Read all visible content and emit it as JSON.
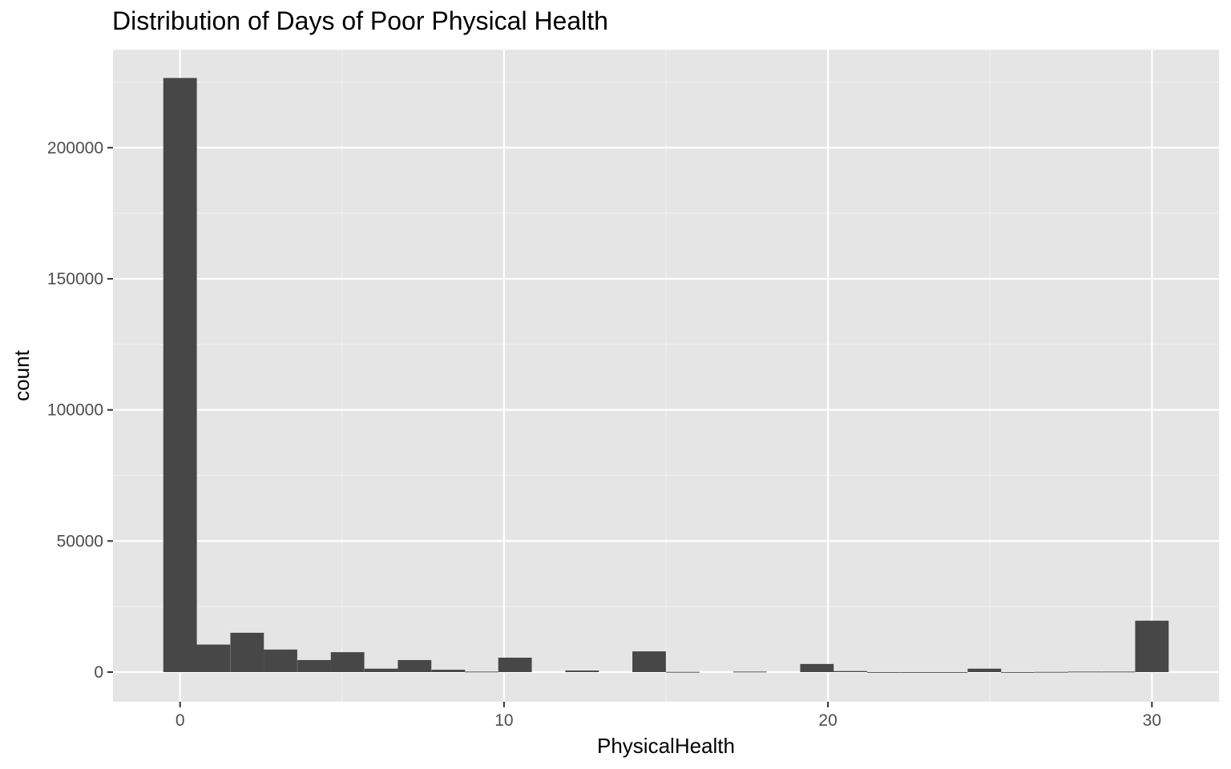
{
  "chart_data": {
    "type": "bar",
    "title": "Distribution of Days of Poor Physical Health",
    "xlabel": "PhysicalHealth",
    "ylabel": "count",
    "xlim": [
      -2.07,
      32.07
    ],
    "ylim": [
      -11300,
      237400
    ],
    "x_ticks": [
      0,
      10,
      20,
      30
    ],
    "x_tick_labels": [
      "0",
      "10",
      "20",
      "30"
    ],
    "y_ticks": [
      0,
      50000,
      100000,
      150000,
      200000
    ],
    "y_tick_labels": [
      "0",
      "50000",
      "100000",
      "150000",
      "200000"
    ],
    "bin_width": 1.0345,
    "bins": [
      {
        "x": 0.0,
        "count": 226600
      },
      {
        "x": 1.03,
        "count": 10500
      },
      {
        "x": 2.07,
        "count": 15000
      },
      {
        "x": 3.1,
        "count": 8600
      },
      {
        "x": 4.14,
        "count": 4600
      },
      {
        "x": 5.17,
        "count": 7600
      },
      {
        "x": 6.21,
        "count": 1300
      },
      {
        "x": 7.24,
        "count": 4600
      },
      {
        "x": 8.28,
        "count": 900
      },
      {
        "x": 9.31,
        "count": 200
      },
      {
        "x": 10.34,
        "count": 5500
      },
      {
        "x": 11.38,
        "count": 0
      },
      {
        "x": 12.41,
        "count": 600
      },
      {
        "x": 13.45,
        "count": 0
      },
      {
        "x": 14.48,
        "count": 7900
      },
      {
        "x": 15.52,
        "count": 100
      },
      {
        "x": 16.55,
        "count": 0
      },
      {
        "x": 17.59,
        "count": 200
      },
      {
        "x": 18.62,
        "count": 0
      },
      {
        "x": 19.66,
        "count": 3100
      },
      {
        "x": 20.69,
        "count": 400
      },
      {
        "x": 21.72,
        "count": 50
      },
      {
        "x": 22.76,
        "count": 50
      },
      {
        "x": 23.79,
        "count": 50
      },
      {
        "x": 24.83,
        "count": 1300
      },
      {
        "x": 25.86,
        "count": 50
      },
      {
        "x": 26.9,
        "count": 100
      },
      {
        "x": 27.93,
        "count": 200
      },
      {
        "x": 28.97,
        "count": 200
      },
      {
        "x": 30.0,
        "count": 19600
      }
    ],
    "grid": true,
    "colors": {
      "panel_background": "#e5e5e5",
      "grid_major": "#ffffff",
      "grid_minor": "#f2f2f2",
      "bar_fill": "#474747",
      "tick_label": "#4d4d4d",
      "tick_mark": "#333333",
      "text": "#000000"
    }
  }
}
